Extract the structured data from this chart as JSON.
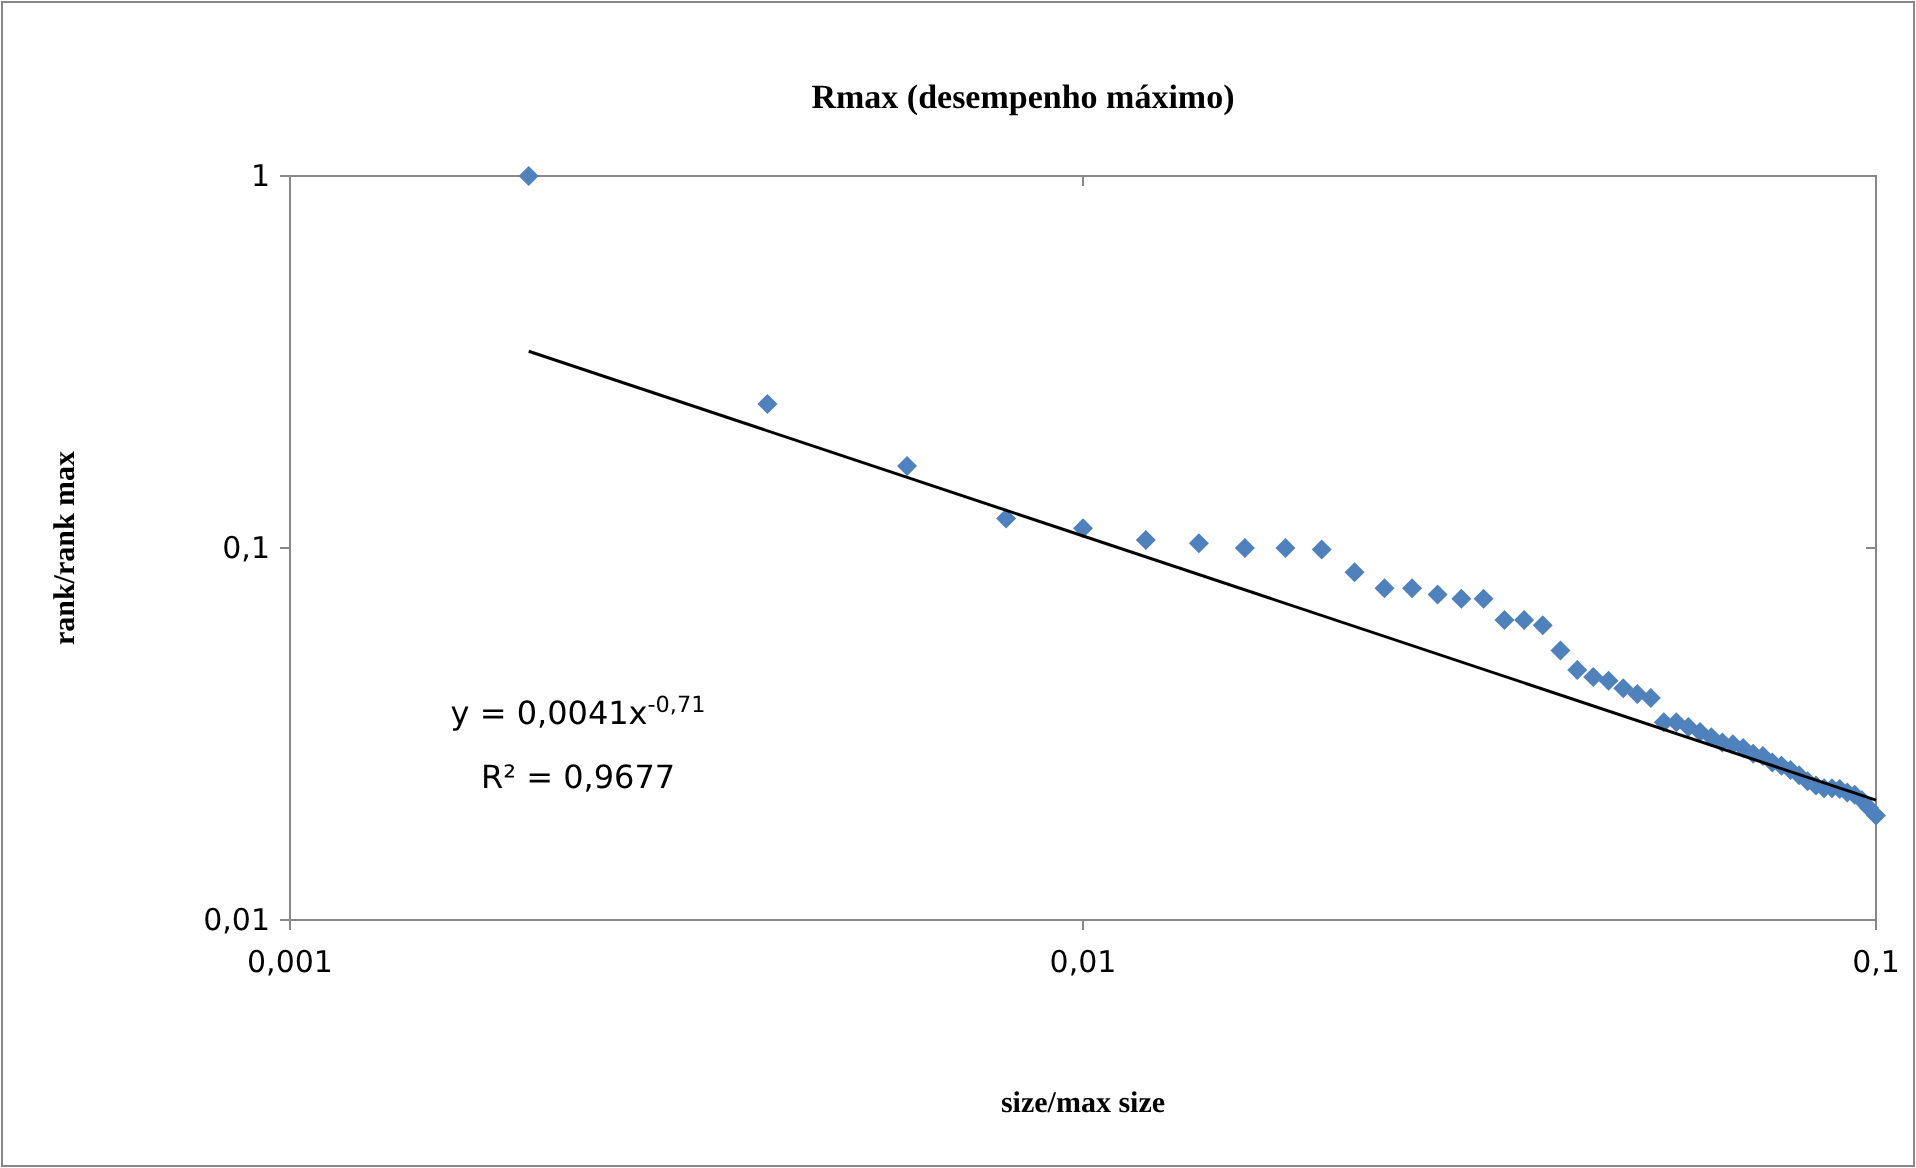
{
  "chart_data": {
    "type": "scatter",
    "title": "Rmax (desempenho máximo)",
    "xlabel": "size/max size",
    "ylabel": "rank/rank max",
    "log": "xy",
    "grid": false,
    "xlim": [
      0.001,
      0.1
    ],
    "xticks": [
      {
        "value": 0.001,
        "label": "0,001"
      },
      {
        "value": 0.01,
        "label": "0,01"
      },
      {
        "value": 0.1,
        "label": "0,1"
      }
    ],
    "ylim": [
      0.01,
      1
    ],
    "yticks": [
      {
        "value": 0.01,
        "label": "0,01"
      },
      {
        "value": 0.1,
        "label": "0,1"
      },
      {
        "value": 1,
        "label": "1"
      }
    ],
    "series": [
      {
        "marker": "diamond",
        "color": "#4f81bd",
        "x": [
          0.002,
          0.004,
          0.006,
          0.008,
          0.01,
          0.012,
          0.014,
          0.016,
          0.018,
          0.02,
          0.022,
          0.024,
          0.026,
          0.028,
          0.03,
          0.032,
          0.034,
          0.036,
          0.038,
          0.04,
          0.042,
          0.044,
          0.046,
          0.048,
          0.05,
          0.052,
          0.054,
          0.056,
          0.058,
          0.06,
          0.062,
          0.064,
          0.066,
          0.068,
          0.07,
          0.072,
          0.074,
          0.076,
          0.078,
          0.08,
          0.082,
          0.084,
          0.086,
          0.088,
          0.09,
          0.092,
          0.094,
          0.096,
          0.098,
          0.1
        ],
        "values": [
          1,
          0.244,
          0.166,
          0.12,
          0.113,
          0.105,
          0.103,
          0.1,
          0.1,
          0.099,
          0.086,
          0.078,
          0.078,
          0.075,
          0.073,
          0.073,
          0.064,
          0.064,
          0.062,
          0.053,
          0.047,
          0.045,
          0.044,
          0.042,
          0.0405,
          0.0395,
          0.034,
          0.034,
          0.033,
          0.032,
          0.031,
          0.03,
          0.0297,
          0.029,
          0.028,
          0.0276,
          0.0265,
          0.026,
          0.0253,
          0.0245,
          0.0236,
          0.023,
          0.0226,
          0.0226,
          0.0225,
          0.022,
          0.0217,
          0.021,
          0.02,
          0.0191
        ]
      },
      {
        "type": "line",
        "color": "#000000",
        "line_style": "solid",
        "x": [
          0.002,
          0.1
        ],
        "values": [
          0.338,
          0.021
        ]
      }
    ],
    "annotations": [
      "y = 0,0041x$^{-0,71}$",
      "R² = 0,9677"
    ]
  }
}
